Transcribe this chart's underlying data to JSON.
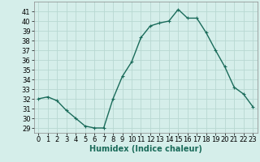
{
  "x": [
    0,
    1,
    2,
    3,
    4,
    5,
    6,
    7,
    8,
    9,
    10,
    11,
    12,
    13,
    14,
    15,
    16,
    17,
    18,
    19,
    20,
    21,
    22,
    23
  ],
  "y": [
    32,
    32.2,
    31.8,
    30.8,
    30.0,
    29.2,
    29.0,
    29.0,
    32.0,
    34.3,
    35.8,
    38.3,
    39.5,
    39.8,
    40.0,
    41.2,
    40.3,
    40.3,
    38.8,
    37.0,
    35.3,
    33.2,
    32.5,
    31.2
  ],
  "line_color": "#1a6b5a",
  "marker": "+",
  "markersize": 3,
  "linewidth": 1.0,
  "markeredgewidth": 0.8,
  "xlabel": "Humidex (Indice chaleur)",
  "xlim": [
    -0.5,
    23.5
  ],
  "ylim": [
    28.5,
    42.0
  ],
  "yticks": [
    29,
    30,
    31,
    32,
    33,
    34,
    35,
    36,
    37,
    38,
    39,
    40,
    41
  ],
  "xticks": [
    0,
    1,
    2,
    3,
    4,
    5,
    6,
    7,
    8,
    9,
    10,
    11,
    12,
    13,
    14,
    15,
    16,
    17,
    18,
    19,
    20,
    21,
    22,
    23
  ],
  "bg_color": "#d5eeea",
  "grid_color": "#b8d8d2",
  "label_fontsize": 7,
  "tick_fontsize": 6
}
